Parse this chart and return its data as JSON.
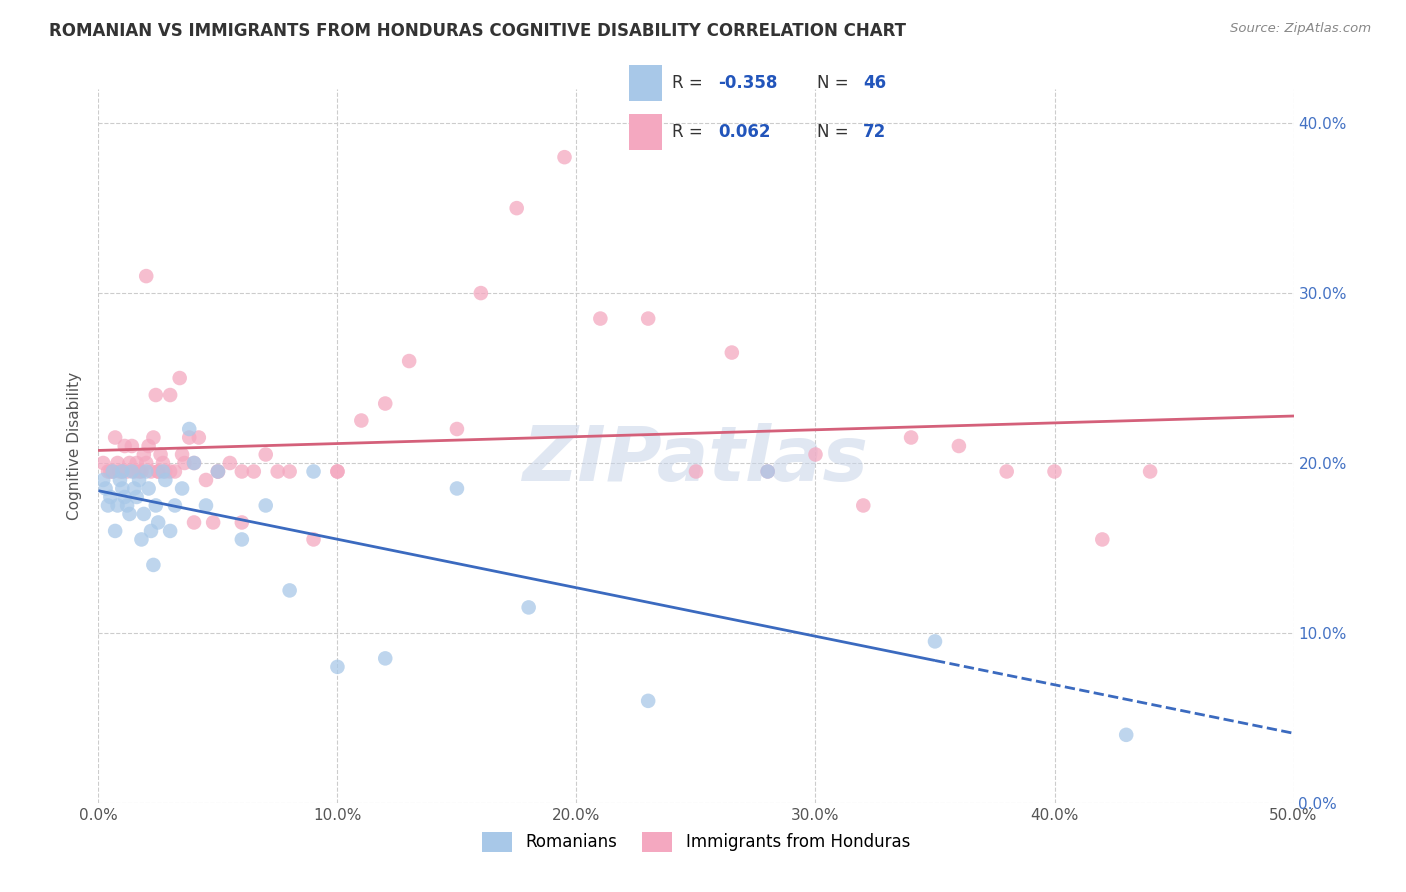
{
  "title": "ROMANIAN VS IMMIGRANTS FROM HONDURAS COGNITIVE DISABILITY CORRELATION CHART",
  "source": "Source: ZipAtlas.com",
  "ylabel": "Cognitive Disability",
  "xmin": 0.0,
  "xmax": 0.5,
  "ymin": 0.0,
  "ymax": 0.42,
  "blue_color": "#a8c8e8",
  "pink_color": "#f4a8c0",
  "blue_line_color": "#3b6abf",
  "pink_line_color": "#d4607a",
  "watermark": "ZIPatlas",
  "blue_R": -0.358,
  "blue_N": 46,
  "pink_R": 0.062,
  "pink_N": 72,
  "blue_scatter_x": [
    0.002,
    0.003,
    0.004,
    0.005,
    0.006,
    0.007,
    0.008,
    0.009,
    0.01,
    0.01,
    0.011,
    0.012,
    0.013,
    0.014,
    0.015,
    0.016,
    0.017,
    0.018,
    0.019,
    0.02,
    0.021,
    0.022,
    0.023,
    0.024,
    0.025,
    0.027,
    0.028,
    0.03,
    0.032,
    0.035,
    0.038,
    0.04,
    0.045,
    0.05,
    0.06,
    0.07,
    0.08,
    0.09,
    0.1,
    0.12,
    0.15,
    0.18,
    0.23,
    0.28,
    0.35,
    0.43
  ],
  "blue_scatter_y": [
    0.19,
    0.185,
    0.175,
    0.18,
    0.195,
    0.16,
    0.175,
    0.19,
    0.185,
    0.195,
    0.18,
    0.175,
    0.17,
    0.195,
    0.185,
    0.18,
    0.19,
    0.155,
    0.17,
    0.195,
    0.185,
    0.16,
    0.14,
    0.175,
    0.165,
    0.195,
    0.19,
    0.16,
    0.175,
    0.185,
    0.22,
    0.2,
    0.175,
    0.195,
    0.155,
    0.175,
    0.125,
    0.195,
    0.08,
    0.085,
    0.185,
    0.115,
    0.06,
    0.195,
    0.095,
    0.04
  ],
  "blue_solid_xend": 0.35,
  "pink_scatter_x": [
    0.002,
    0.004,
    0.005,
    0.006,
    0.007,
    0.008,
    0.009,
    0.01,
    0.011,
    0.012,
    0.013,
    0.014,
    0.015,
    0.016,
    0.017,
    0.018,
    0.019,
    0.02,
    0.021,
    0.022,
    0.023,
    0.024,
    0.025,
    0.026,
    0.027,
    0.028,
    0.03,
    0.032,
    0.034,
    0.036,
    0.038,
    0.04,
    0.042,
    0.045,
    0.048,
    0.05,
    0.055,
    0.06,
    0.065,
    0.07,
    0.075,
    0.08,
    0.09,
    0.1,
    0.11,
    0.13,
    0.15,
    0.16,
    0.175,
    0.195,
    0.21,
    0.23,
    0.25,
    0.265,
    0.28,
    0.3,
    0.32,
    0.34,
    0.36,
    0.38,
    0.4,
    0.42,
    0.44,
    0.02,
    0.025,
    0.03,
    0.035,
    0.04,
    0.05,
    0.06,
    0.1,
    0.12
  ],
  "pink_scatter_y": [
    0.2,
    0.195,
    0.195,
    0.195,
    0.215,
    0.2,
    0.195,
    0.195,
    0.21,
    0.195,
    0.2,
    0.21,
    0.195,
    0.2,
    0.195,
    0.195,
    0.205,
    0.2,
    0.21,
    0.195,
    0.215,
    0.24,
    0.195,
    0.205,
    0.2,
    0.195,
    0.195,
    0.195,
    0.25,
    0.2,
    0.215,
    0.2,
    0.215,
    0.19,
    0.165,
    0.195,
    0.2,
    0.165,
    0.195,
    0.205,
    0.195,
    0.195,
    0.155,
    0.195,
    0.225,
    0.26,
    0.22,
    0.3,
    0.35,
    0.38,
    0.285,
    0.285,
    0.195,
    0.265,
    0.195,
    0.205,
    0.175,
    0.215,
    0.21,
    0.195,
    0.195,
    0.155,
    0.195,
    0.31,
    0.195,
    0.24,
    0.205,
    0.165,
    0.195,
    0.195,
    0.195,
    0.235
  ]
}
